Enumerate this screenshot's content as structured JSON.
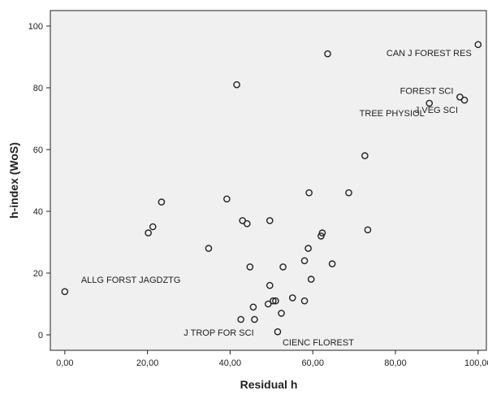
{
  "chart_data": {
    "type": "scatter",
    "xlabel": "Residual h",
    "ylabel": "h-index (WoS)",
    "xlim": [
      -3.5,
      102
    ],
    "ylim": [
      -5,
      105
    ],
    "xticks": [
      0,
      20,
      40,
      60,
      80,
      100
    ],
    "xtick_labels": [
      "0,00",
      "20,00",
      "40,00",
      "60,00",
      "80,00",
      "100,00"
    ],
    "yticks": [
      0,
      20,
      40,
      60,
      80,
      100
    ],
    "ytick_labels": [
      "0",
      "20",
      "40",
      "60",
      "80",
      "100"
    ],
    "grid": false,
    "colors": {
      "plot_bg": "#f0f0f0",
      "marker": "#222222",
      "frame": "#222222"
    },
    "points": [
      {
        "x": 0.0,
        "y": 14
      },
      {
        "x": 20.2,
        "y": 33
      },
      {
        "x": 21.3,
        "y": 35
      },
      {
        "x": 23.4,
        "y": 43
      },
      {
        "x": 34.8,
        "y": 28
      },
      {
        "x": 39.2,
        "y": 44
      },
      {
        "x": 41.6,
        "y": 81
      },
      {
        "x": 42.6,
        "y": 5
      },
      {
        "x": 43.0,
        "y": 37
      },
      {
        "x": 44.1,
        "y": 36
      },
      {
        "x": 44.8,
        "y": 22
      },
      {
        "x": 45.6,
        "y": 9
      },
      {
        "x": 45.9,
        "y": 5
      },
      {
        "x": 49.2,
        "y": 10
      },
      {
        "x": 49.6,
        "y": 16
      },
      {
        "x": 49.6,
        "y": 37
      },
      {
        "x": 50.4,
        "y": 11
      },
      {
        "x": 51.0,
        "y": 11
      },
      {
        "x": 51.5,
        "y": 1
      },
      {
        "x": 52.4,
        "y": 7
      },
      {
        "x": 52.8,
        "y": 22
      },
      {
        "x": 55.1,
        "y": 12
      },
      {
        "x": 58.0,
        "y": 11
      },
      {
        "x": 58.0,
        "y": 24
      },
      {
        "x": 58.9,
        "y": 28
      },
      {
        "x": 59.1,
        "y": 46
      },
      {
        "x": 59.6,
        "y": 18
      },
      {
        "x": 62.0,
        "y": 32
      },
      {
        "x": 62.3,
        "y": 33
      },
      {
        "x": 63.6,
        "y": 91
      },
      {
        "x": 64.7,
        "y": 23
      },
      {
        "x": 68.7,
        "y": 46
      },
      {
        "x": 72.6,
        "y": 58
      },
      {
        "x": 73.3,
        "y": 34
      },
      {
        "x": 88.2,
        "y": 75
      },
      {
        "x": 95.6,
        "y": 77
      },
      {
        "x": 96.7,
        "y": 76
      },
      {
        "x": 100.0,
        "y": 94
      }
    ],
    "annotations": [
      {
        "text": "CAN J FOREST RES",
        "x": 100.0,
        "y": 94
      },
      {
        "text": "FOREST SCI",
        "x": 95.6,
        "y": 77
      },
      {
        "text": "J VEG SCI",
        "x": 96.7,
        "y": 76
      },
      {
        "text": "TREE PHYSIOL",
        "x": 88.2,
        "y": 75
      },
      {
        "text": "ALLG FORST JAGDZTG",
        "x": 0.0,
        "y": 14
      },
      {
        "text": "J TROP FOR SCI",
        "x": 42.6,
        "y": 5
      },
      {
        "text": "CIENC FLOREST",
        "x": 51.5,
        "y": 1
      }
    ]
  }
}
